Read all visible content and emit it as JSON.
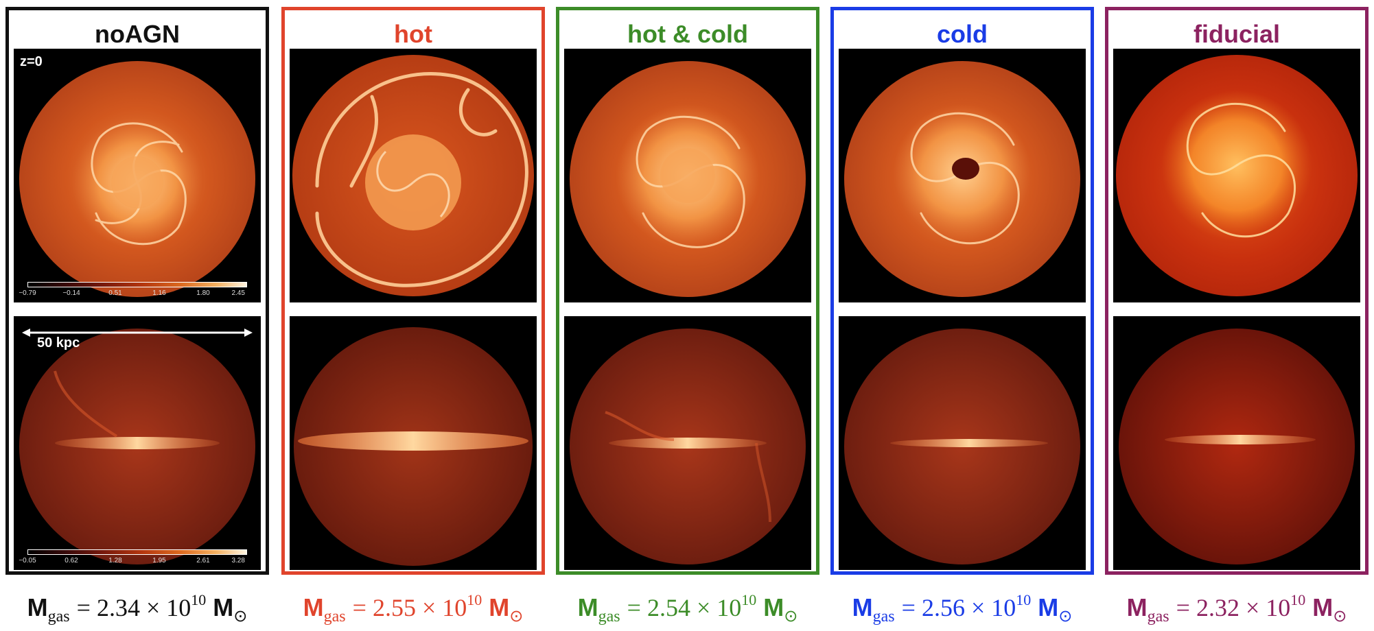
{
  "panels": [
    {
      "title": "noAGN",
      "color": "#111111",
      "mass": {
        "M": "M",
        "sub": "gas",
        "num": "= 2.34 × 10",
        "exp": "10",
        "unit": "M",
        "sun": "⊙"
      }
    },
    {
      "title": "hot",
      "color": "#e0442c",
      "mass": {
        "M": "M",
        "sub": "gas",
        "num": "= 2.55 × 10",
        "exp": "10",
        "unit": "M",
        "sun": "⊙"
      }
    },
    {
      "title": "hot & cold",
      "color": "#3c8c28",
      "mass": {
        "M": "M",
        "sub": "gas",
        "num": "= 2.54 × 10",
        "exp": "10",
        "unit": "M",
        "sun": "⊙"
      }
    },
    {
      "title": "cold",
      "color": "#1a3ce6",
      "mass": {
        "M": "M",
        "sub": "gas",
        "num": "= 2.56 × 10",
        "exp": "10",
        "unit": "M",
        "sun": "⊙"
      }
    },
    {
      "title": "fiducial",
      "color": "#8c2260",
      "mass": {
        "M": "M",
        "sub": "gas",
        "num": "= 2.32 × 10",
        "exp": "10",
        "unit": "M",
        "sun": "⊙"
      }
    }
  ],
  "annotations": {
    "redshift": "z=0",
    "scale_bar": "50 kpc",
    "colorbar_face_ticks": [
      "−0.79",
      "−0.14",
      "0.51",
      "1.16",
      "1.80",
      "2.45"
    ],
    "colorbar_edge_ticks": [
      "−0.05",
      "0.62",
      "1.28",
      "1.95",
      "2.61",
      "3.28"
    ]
  },
  "icons": {
    "gas_map": "galaxy-gas-density-map"
  }
}
